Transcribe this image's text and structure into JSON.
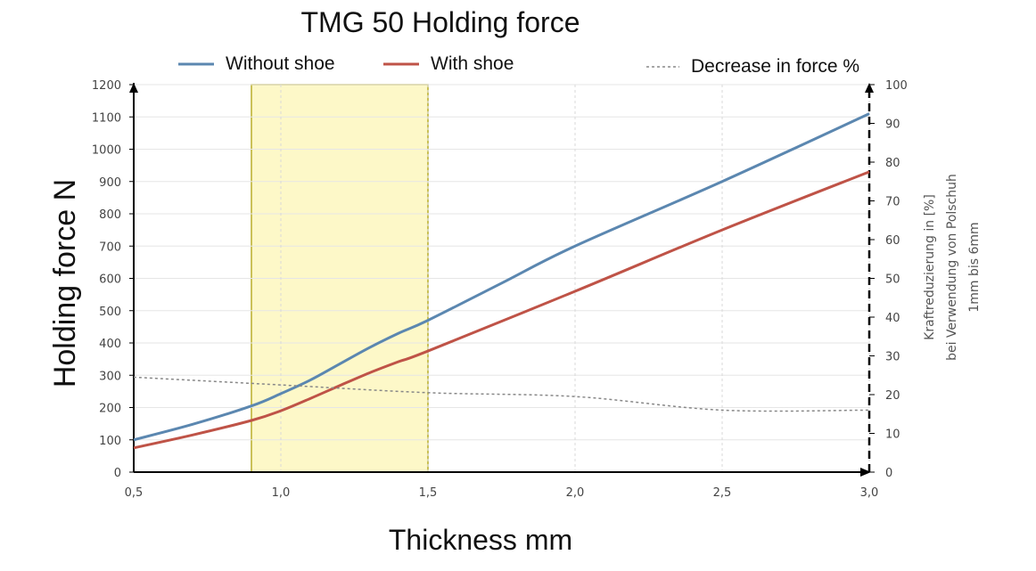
{
  "chart_data": {
    "type": "line",
    "title": "TMG 50 Holding force",
    "xlabel": "Thickness mm",
    "ylabel": "Holding force N",
    "y2label_lines": [
      "Kraftreduzierung in [%]",
      "bei Verwendung von Polschuh",
      "1mm bis 6mm"
    ],
    "xlim": [
      0.5,
      3.0
    ],
    "ylim": [
      0,
      1200
    ],
    "y2lim": [
      0,
      100
    ],
    "x_ticks": [
      0.5,
      1.0,
      1.5,
      2.0,
      2.5,
      3.0
    ],
    "x_tick_labels": [
      "0,5",
      "1,0",
      "1,5",
      "2,0",
      "2,5",
      "3,0"
    ],
    "y_ticks": [
      0,
      100,
      200,
      300,
      400,
      500,
      600,
      700,
      800,
      900,
      1000,
      1100,
      1200
    ],
    "y2_ticks": [
      0,
      10,
      20,
      30,
      40,
      50,
      60,
      70,
      80,
      90,
      100
    ],
    "grid": true,
    "legend_position": "top",
    "highlight_band": {
      "x_start": 0.9,
      "x_end": 1.5,
      "color": "#fdf8c8",
      "border": "#b9ae2a"
    },
    "series": [
      {
        "name": "Without shoe",
        "axis": "left",
        "color": "#5b87b0",
        "style": "solid",
        "x": [
          0.5,
          0.7,
          0.9,
          1.0,
          1.1,
          1.2,
          1.3,
          1.4,
          1.5,
          1.75,
          2.0,
          2.5,
          3.0
        ],
        "y": [
          100,
          148,
          205,
          243,
          285,
          335,
          385,
          430,
          470,
          585,
          700,
          900,
          1110
        ]
      },
      {
        "name": "With shoe",
        "axis": "left",
        "color": "#bf5347",
        "style": "solid",
        "x": [
          0.5,
          0.7,
          0.9,
          1.0,
          1.1,
          1.2,
          1.3,
          1.4,
          1.5,
          2.0,
          2.5,
          3.0
        ],
        "y": [
          75,
          115,
          160,
          190,
          228,
          268,
          307,
          342,
          375,
          560,
          750,
          930
        ]
      },
      {
        "name": "Decrease in force %",
        "axis": "right",
        "color": "#888888",
        "style": "dashed",
        "x": [
          0.5,
          1.0,
          1.5,
          2.0,
          2.5,
          3.0
        ],
        "y": [
          24.5,
          22.5,
          20.5,
          19.5,
          16,
          16
        ]
      }
    ]
  }
}
